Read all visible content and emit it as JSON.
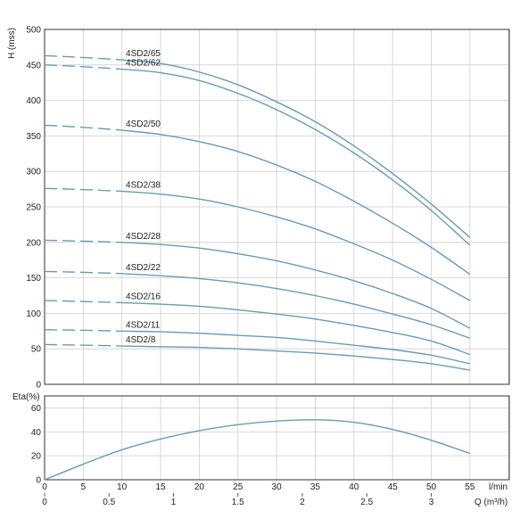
{
  "chart_data": [
    {
      "type": "line",
      "xlabel": "",
      "ylabel": "H (mss)",
      "xlim": [
        0,
        60
      ],
      "ylim": [
        0,
        500
      ],
      "grid": true,
      "y_ticks": [
        0,
        50,
        100,
        150,
        200,
        250,
        300,
        350,
        400,
        450,
        500
      ],
      "x_ticks": [
        0,
        5,
        10,
        15,
        20,
        25,
        30,
        35,
        40,
        45,
        50,
        55
      ],
      "line_color": "#6a9bb4",
      "series": [
        {
          "name": "4SD2/65",
          "dashed_x": [
            0,
            10
          ],
          "x": [
            10,
            15,
            20,
            25,
            30,
            35,
            40,
            45,
            50,
            55
          ],
          "values": [
            457,
            452,
            440,
            422,
            398,
            370,
            336,
            297,
            254,
            207
          ]
        },
        {
          "name": "4SD2/62",
          "dashed_x": [
            0,
            10
          ],
          "x": [
            10,
            15,
            20,
            25,
            30,
            35,
            40,
            45,
            50,
            55
          ],
          "values": [
            444,
            439,
            428,
            410,
            387,
            359,
            326,
            288,
            245,
            196
          ]
        },
        {
          "name": "4SD2/50",
          "dashed_x": [
            0,
            10
          ],
          "x": [
            10,
            15,
            20,
            25,
            30,
            35,
            40,
            45,
            50,
            55
          ],
          "values": [
            358,
            352,
            342,
            328,
            309,
            286,
            258,
            227,
            193,
            155
          ]
        },
        {
          "name": "4SD2/38",
          "dashed_x": [
            0,
            10
          ],
          "x": [
            10,
            15,
            20,
            25,
            30,
            35,
            40,
            45,
            50,
            55
          ],
          "values": [
            272,
            268,
            261,
            250,
            236,
            219,
            198,
            175,
            148,
            118
          ]
        },
        {
          "name": "4SD2/28",
          "dashed_x": [
            0,
            10
          ],
          "x": [
            10,
            15,
            20,
            25,
            30,
            35,
            40,
            45,
            50,
            55
          ],
          "values": [
            200,
            197,
            192,
            184,
            174,
            161,
            146,
            128,
            107,
            79
          ]
        },
        {
          "name": "4SD2/22",
          "dashed_x": [
            0,
            10
          ],
          "x": [
            10,
            15,
            20,
            25,
            30,
            35,
            40,
            45,
            50,
            55
          ],
          "values": [
            156,
            153,
            149,
            143,
            135,
            125,
            113,
            99,
            84,
            65
          ]
        },
        {
          "name": "4SD2/16",
          "dashed_x": [
            0,
            10
          ],
          "x": [
            10,
            15,
            20,
            25,
            30,
            35,
            40,
            45,
            50,
            55
          ],
          "values": [
            115,
            113,
            110,
            105,
            99,
            92,
            83,
            73,
            61,
            42
          ]
        },
        {
          "name": "4SD2/11",
          "dashed_x": [
            0,
            10
          ],
          "x": [
            10,
            15,
            20,
            25,
            30,
            35,
            40,
            45,
            50,
            55
          ],
          "values": [
            75,
            74,
            72,
            69,
            66,
            61,
            55,
            49,
            41,
            29
          ]
        },
        {
          "name": "4SD2/8",
          "dashed_x": [
            0,
            10
          ],
          "x": [
            10,
            15,
            20,
            25,
            30,
            35,
            40,
            45,
            50,
            55
          ],
          "values": [
            54,
            53,
            52,
            50,
            47,
            44,
            40,
            35,
            29,
            20
          ]
        }
      ],
      "start_values": [
        463,
        450,
        365,
        276,
        203,
        159,
        118,
        77,
        56
      ]
    },
    {
      "type": "line",
      "ylabel": "Eta(%)",
      "xlim": [
        0,
        60
      ],
      "ylim": [
        0,
        70
      ],
      "grid": true,
      "y_ticks": [
        0,
        20,
        40,
        60
      ],
      "x_ticks_lmin": [
        0,
        5,
        10,
        15,
        20,
        25,
        30,
        35,
        40,
        45,
        50,
        55
      ],
      "x_label_lmin": "l/min",
      "x_ticks_m3h": [
        "0",
        "0.5",
        "1",
        "1.5",
        "2",
        "2.5",
        "3"
      ],
      "x_ticks_m3h_values": [
        0,
        0.5,
        1,
        1.5,
        2,
        2.5,
        3
      ],
      "x_label_m3h": "Q (m³/h)",
      "series": [
        {
          "name": "",
          "x": [
            0,
            5,
            10,
            15,
            20,
            25,
            30,
            35,
            40,
            45,
            50,
            55
          ],
          "values": [
            0,
            13,
            25,
            34,
            41,
            46,
            49,
            50,
            48,
            42,
            33,
            22
          ]
        }
      ]
    }
  ]
}
